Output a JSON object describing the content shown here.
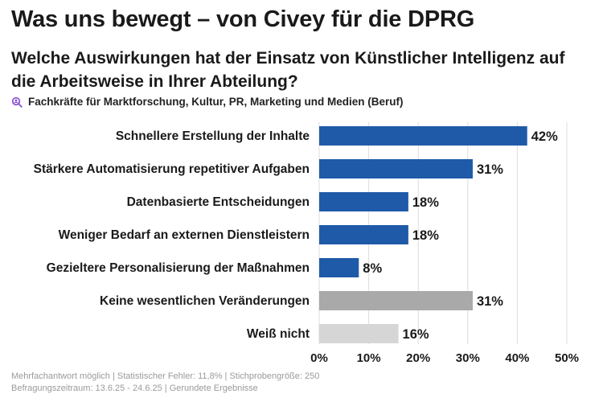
{
  "header": {
    "title": "Was uns bewegt – von Civey für die DPRG",
    "question": "Welche Auswirkungen hat der Einsatz von Künstlicher Intelligenz auf die Arbeitsweise in Ihrer Abteilung?",
    "audience": "Fachkräfte für Marktforschung, Kultur, PR, Marketing und Medien (Beruf)",
    "audience_icon": "people-search-icon"
  },
  "footer": {
    "line1": "Mehrfachantwort möglich | Statistischer Fehler: 11,8% | Stichprobengröße: 250",
    "line2": "Befragungszeitraum: 13.6.25 - 24.6.25 | Gerundete Ergebnisse"
  },
  "colors": {
    "primary": "#1f5aa8",
    "neutral_dark": "#a9a9a9",
    "neutral_light": "#d6d6d6",
    "grid": "#dcdcdc",
    "accent_icon": "#8a4fd6"
  },
  "chart_data": {
    "type": "bar",
    "orientation": "horizontal",
    "categories": [
      "Schnellere Erstellung der Inhalte",
      "Stärkere Automatisierung repetitiver Aufgaben",
      "Datenbasierte Entscheidungen",
      "Weniger Bedarf an externen Dienstleistern",
      "Gezieltere Personalisierung der Maßnahmen",
      "Keine wesentlichen Veränderungen",
      "Weiß nicht"
    ],
    "values": [
      42,
      31,
      18,
      18,
      8,
      31,
      16
    ],
    "value_labels": [
      "42%",
      "31%",
      "18%",
      "18%",
      "8%",
      "31%",
      "16%"
    ],
    "bar_colors": [
      "#1f5aa8",
      "#1f5aa8",
      "#1f5aa8",
      "#1f5aa8",
      "#1f5aa8",
      "#a9a9a9",
      "#d6d6d6"
    ],
    "xlim": [
      0,
      50
    ],
    "xticks": [
      0,
      10,
      20,
      30,
      40,
      50
    ],
    "xtick_labels": [
      "0%",
      "10%",
      "20%",
      "30%",
      "40%",
      "50%"
    ],
    "grid": true,
    "legend": "none"
  }
}
